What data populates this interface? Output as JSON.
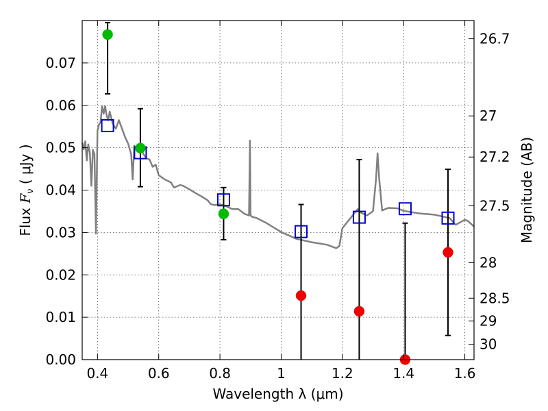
{
  "chart_data": {
    "type": "scatter",
    "xlabel": "Wavelength  λ (μm)",
    "ylabel": "Flux  F_ν  ( μJy )",
    "ylabel_parts": {
      "pre": "Flux  ",
      "sym": "F",
      "sub": "ν",
      "post": "  ( μJy )"
    },
    "y2label": "Magnitude (AB)",
    "xlim": [
      0.35,
      1.63
    ],
    "ylim": [
      0.0,
      0.08
    ],
    "x_ticks": [
      0.4,
      0.6,
      0.8,
      1.0,
      1.2,
      1.4,
      1.6
    ],
    "x_tick_labels": [
      "0.4",
      "0.6",
      "0.8",
      "1",
      "1.2",
      "1.4",
      "1.6"
    ],
    "y_ticks": [
      0.0,
      0.01,
      0.02,
      0.03,
      0.04,
      0.05,
      0.06,
      0.07
    ],
    "y_tick_labels": [
      "0.00",
      "0.01",
      "0.02",
      "0.03",
      "0.04",
      "0.05",
      "0.06",
      "0.07"
    ],
    "y2_ticks": [
      {
        "label": "26.7",
        "flux": 0.0757
      },
      {
        "label": "27",
        "flux": 0.0575
      },
      {
        "label": "27.2",
        "flux": 0.0478
      },
      {
        "label": "27.5",
        "flux": 0.0363
      },
      {
        "label": "28",
        "flux": 0.0229
      },
      {
        "label": "28.5",
        "flux": 0.0145
      },
      {
        "label": "29",
        "flux": 0.0091
      },
      {
        "label": "30",
        "flux": 0.0036
      }
    ],
    "grid": true,
    "series": [
      {
        "kind": "spectrum",
        "color": "#808080",
        "x": [
          0.35,
          0.355,
          0.36,
          0.365,
          0.37,
          0.375,
          0.38,
          0.385,
          0.39,
          0.395,
          0.4,
          0.405,
          0.41,
          0.415,
          0.42,
          0.425,
          0.43,
          0.435,
          0.44,
          0.45,
          0.46,
          0.47,
          0.48,
          0.49,
          0.5,
          0.51,
          0.515,
          0.52,
          0.53,
          0.54,
          0.55,
          0.56,
          0.57,
          0.58,
          0.59,
          0.6,
          0.62,
          0.64,
          0.65,
          0.66,
          0.67,
          0.68,
          0.7,
          0.72,
          0.74,
          0.76,
          0.77,
          0.78,
          0.8,
          0.82,
          0.84,
          0.86,
          0.88,
          0.895,
          0.898,
          0.9,
          0.905,
          0.92,
          0.95,
          1.0,
          1.05,
          1.1,
          1.15,
          1.18,
          1.19,
          1.2,
          1.25,
          1.26,
          1.28,
          1.3,
          1.31,
          1.315,
          1.32,
          1.33,
          1.35,
          1.38,
          1.4,
          1.45,
          1.5,
          1.55,
          1.57,
          1.59,
          1.6,
          1.61,
          1.63
        ],
        "y": [
          0.0512,
          0.0496,
          0.0515,
          0.047,
          0.0508,
          0.0488,
          0.041,
          0.0495,
          0.0485,
          0.0297,
          0.054,
          0.0555,
          0.056,
          0.0598,
          0.058,
          0.0598,
          0.0575,
          0.0565,
          0.0585,
          0.0556,
          0.0545,
          0.0565,
          0.0545,
          0.0525,
          0.051,
          0.0484,
          0.0425,
          0.0505,
          0.0492,
          0.0499,
          0.0485,
          0.0475,
          0.0472,
          0.0455,
          0.046,
          0.0435,
          0.0425,
          0.0418,
          0.0406,
          0.0409,
          0.0412,
          0.041,
          0.0402,
          0.0393,
          0.0385,
          0.0376,
          0.0367,
          0.0365,
          0.0366,
          0.0362,
          0.0355,
          0.0355,
          0.0344,
          0.034,
          0.0517,
          0.034,
          0.0337,
          0.0334,
          0.0323,
          0.0301,
          0.0285,
          0.0277,
          0.0271,
          0.0263,
          0.0268,
          0.031,
          0.0355,
          0.0347,
          0.034,
          0.035,
          0.0427,
          0.0487,
          0.0428,
          0.0352,
          0.0358,
          0.0357,
          0.0351,
          0.0345,
          0.0342,
          0.0334,
          0.0318,
          0.0326,
          0.033,
          0.0327,
          0.0314
        ]
      },
      {
        "kind": "model-squares",
        "color": "#0000cc",
        "x": [
          0.433,
          0.54,
          0.812,
          1.065,
          1.255,
          1.405,
          1.545
        ],
        "y": [
          0.0552,
          0.0488,
          0.0377,
          0.0302,
          0.0336,
          0.0356,
          0.0334
        ]
      },
      {
        "kind": "detections",
        "color": "#00bb00",
        "x": [
          0.433,
          0.54,
          0.812
        ],
        "y": [
          0.0767,
          0.0499,
          0.0344
        ],
        "err_low": [
          0.0627,
          0.0408,
          0.0283
        ],
        "err_high": [
          0.0795,
          0.0592,
          0.0406
        ]
      },
      {
        "kind": "non-detections",
        "color": "#ee0000",
        "x": [
          1.065,
          1.255,
          1.405,
          1.545
        ],
        "y": [
          0.0151,
          0.0114,
          0.0,
          0.0253
        ],
        "err_low": [
          0.0,
          0.0,
          0.0,
          0.0057
        ],
        "err_high": [
          0.0366,
          0.0472,
          0.0322,
          0.0449
        ]
      }
    ]
  }
}
